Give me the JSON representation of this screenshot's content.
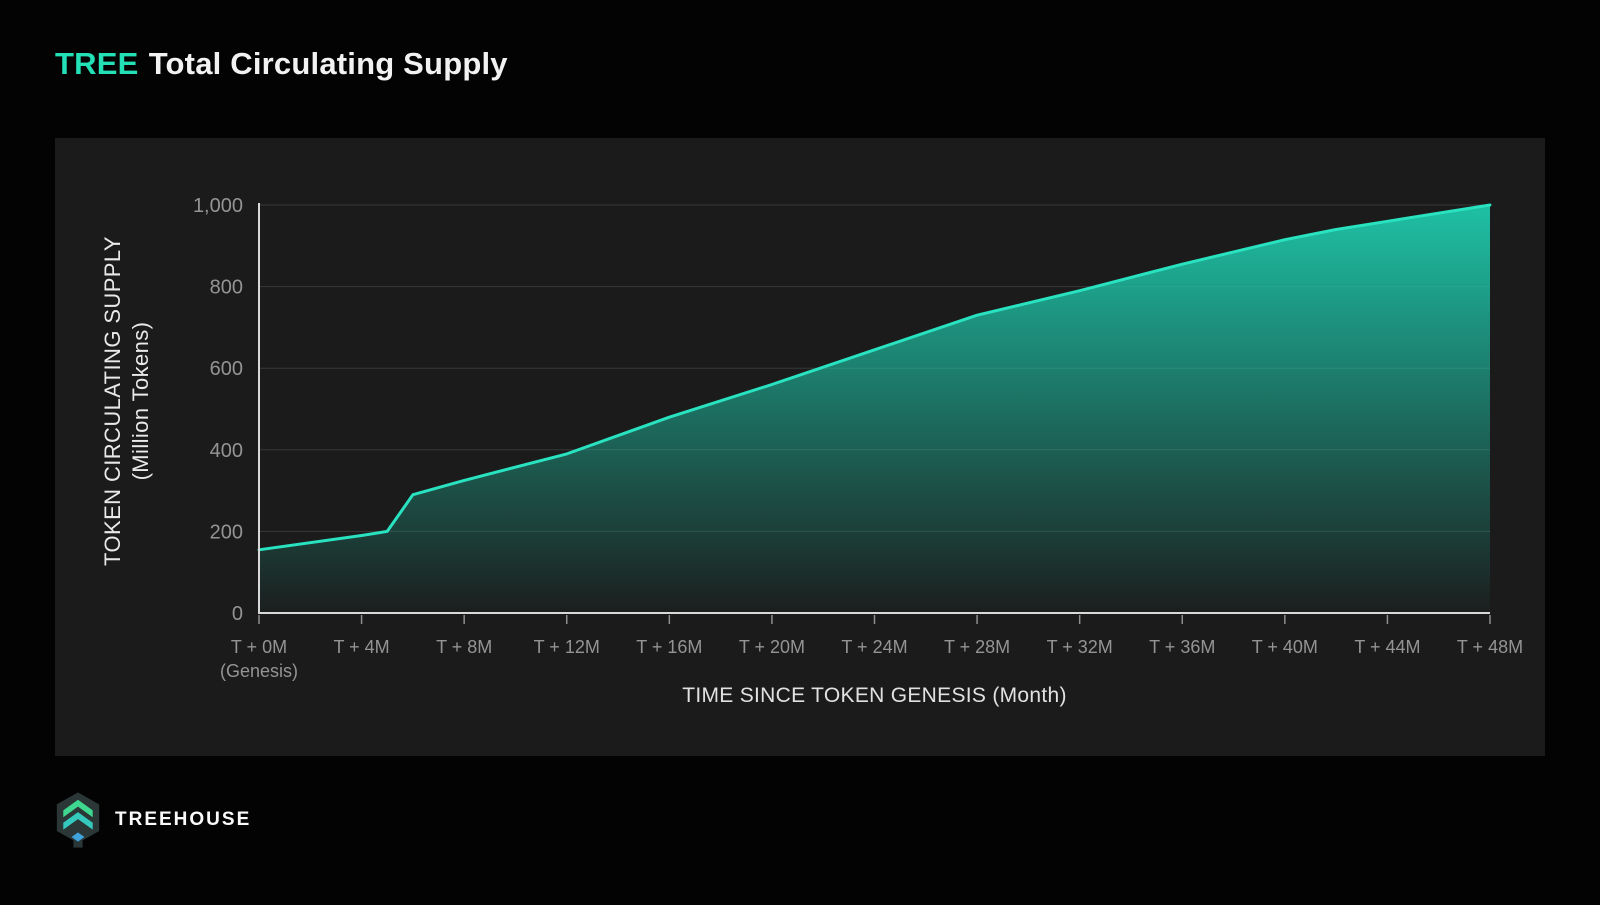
{
  "header": {
    "title_accent": "TREE",
    "title_rest": "Total Circulating Supply"
  },
  "chart_data": {
    "type": "area",
    "title": "TREE Total Circulating Supply",
    "xlabel": "TIME SINCE TOKEN GENESIS (Month)",
    "ylabel_line1": "TOKEN CIRCULATING SUPPLY",
    "ylabel_line2": "(Million Tokens)",
    "xlim": [
      0,
      48
    ],
    "ylim": [
      0,
      1000
    ],
    "grid": "horizontal",
    "legend": "none",
    "x_ticks": [
      {
        "month": 0,
        "label": "T + 0M",
        "sublabel": "(Genesis)"
      },
      {
        "month": 4,
        "label": "T + 4M"
      },
      {
        "month": 8,
        "label": "T + 8M"
      },
      {
        "month": 12,
        "label": "T + 12M"
      },
      {
        "month": 16,
        "label": "T + 16M"
      },
      {
        "month": 20,
        "label": "T + 20M"
      },
      {
        "month": 24,
        "label": "T + 24M"
      },
      {
        "month": 28,
        "label": "T + 28M"
      },
      {
        "month": 32,
        "label": "T + 32M"
      },
      {
        "month": 36,
        "label": "T + 36M"
      },
      {
        "month": 40,
        "label": "T + 40M"
      },
      {
        "month": 44,
        "label": "T + 44M"
      },
      {
        "month": 48,
        "label": "T + 48M"
      }
    ],
    "y_ticks": [
      {
        "value": 0,
        "label": "0"
      },
      {
        "value": 200,
        "label": "200"
      },
      {
        "value": 400,
        "label": "400"
      },
      {
        "value": 600,
        "label": "600"
      },
      {
        "value": 800,
        "label": "800"
      },
      {
        "value": 1000,
        "label": "1,000"
      }
    ],
    "series": [
      {
        "name": "TREE total circulating supply (million tokens)",
        "points": [
          [
            0,
            155
          ],
          [
            4,
            190
          ],
          [
            5,
            200
          ],
          [
            6,
            290
          ],
          [
            8,
            325
          ],
          [
            12,
            390
          ],
          [
            16,
            480
          ],
          [
            20,
            560
          ],
          [
            24,
            645
          ],
          [
            28,
            730
          ],
          [
            32,
            790
          ],
          [
            36,
            855
          ],
          [
            40,
            915
          ],
          [
            42,
            940
          ],
          [
            44,
            960
          ],
          [
            48,
            1000
          ]
        ]
      }
    ]
  },
  "footer": {
    "brand": "TREEHOUSE"
  },
  "colors": {
    "accent": "#23E0B6",
    "line": "#29E2C0",
    "area_top": "#1EC9AC",
    "panel": "#1B1B1B",
    "page_bg": "#030303",
    "gridline": "rgba(255,255,255,0.13)",
    "axis": "#D9D9D9",
    "tick_mark": "#8E8E8E",
    "tick_text": "#949494",
    "axis_title": "#E9E9E9",
    "title_text": "#F2F2F2",
    "logo_green": "#3FD68F",
    "logo_teal": "#35C9BE",
    "logo_blue": "#3FA3DC",
    "logo_dark": "#2A3736"
  }
}
